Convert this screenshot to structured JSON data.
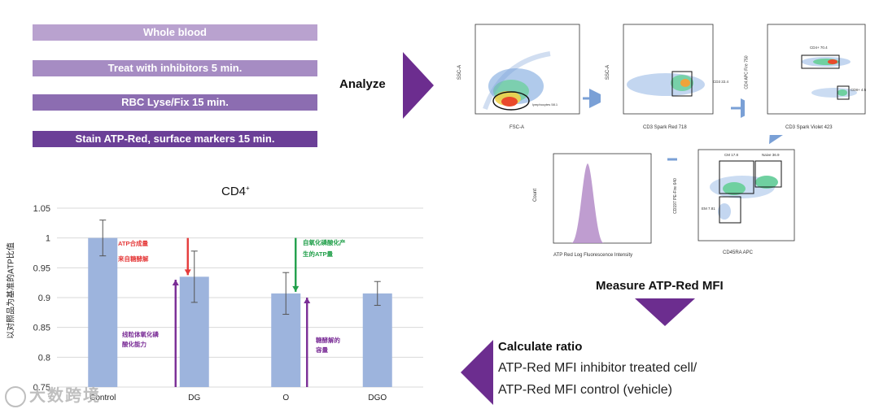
{
  "workflow": {
    "steps": [
      {
        "label": "Whole blood",
        "color": "#b9a2cf"
      },
      {
        "label": "Treat with inhibitors 5 min.",
        "color": "#a68cc3"
      },
      {
        "label": "RBC Lyse/Fix 15 min.",
        "color": "#8c6db1"
      },
      {
        "label": "Stain ATP-Red, surface markers 15 min.",
        "color": "#6b3f97"
      }
    ],
    "analyze_label": "Analyze",
    "arrow_color": "#6c2d8f"
  },
  "flow": {
    "plot1": {
      "xlabel": "FSC-A",
      "ylabel": "SSC-A",
      "gate": "lymphocytes 58.1"
    },
    "plot2": {
      "xlabel": "CD3 Spark Red 718",
      "ylabel": "SSC-A",
      "gate": "CD3 22.4"
    },
    "plot3": {
      "xlabel": "CD3 Spark Violet 423",
      "ylabel": "CD4 APC Fire 750",
      "gate_top": "CD4+ 70.4",
      "gate_right": "CD8+ 4.5"
    },
    "plot4": {
      "xlabel": "CD45RA APC",
      "ylabel": "CD197 PE-Fire 640",
      "gate_a": "CM 17.8",
      "gate_b": "Naive 36.9",
      "gate_c": "EM 7.81"
    },
    "histogram": {
      "xlabel": "ATP Red Log Fluorescence Intensity",
      "ylabel": "Count"
    }
  },
  "measure_label": "Measure ATP-Red MFI",
  "ratio": {
    "title": "Calculate ratio",
    "line1": "ATP-Red MFI inhibitor treated cell/",
    "line2": "ATP-Red MFI control (vehicle)"
  },
  "chart_data": {
    "type": "bar",
    "title": "CD4",
    "title_sup": "+",
    "ylabel": "以对照品为基准的ATP比值",
    "xlabel": "",
    "categories": [
      "Control",
      "DG",
      "O",
      "DGO"
    ],
    "values": [
      1.0,
      0.935,
      0.907,
      0.907
    ],
    "errors": [
      0.03,
      0.043,
      0.035,
      0.02
    ],
    "ylim": [
      0.75,
      1.05
    ],
    "yticks": [
      "0.75",
      "0.8",
      "0.85",
      "0.9",
      "0.95",
      "1",
      "1.05"
    ],
    "bar_color": "#9db4dd",
    "grid": true,
    "annotations": {
      "red": [
        "ATP合成量",
        "来自糖酵解"
      ],
      "green": [
        "自氧化磷酸化产",
        "生的ATP量"
      ],
      "purple_dg": [
        "线粒体氧化磷",
        "酸化能力"
      ],
      "purple_o": [
        "糖酵解的",
        "容量"
      ]
    }
  },
  "watermark": "大数跨境"
}
